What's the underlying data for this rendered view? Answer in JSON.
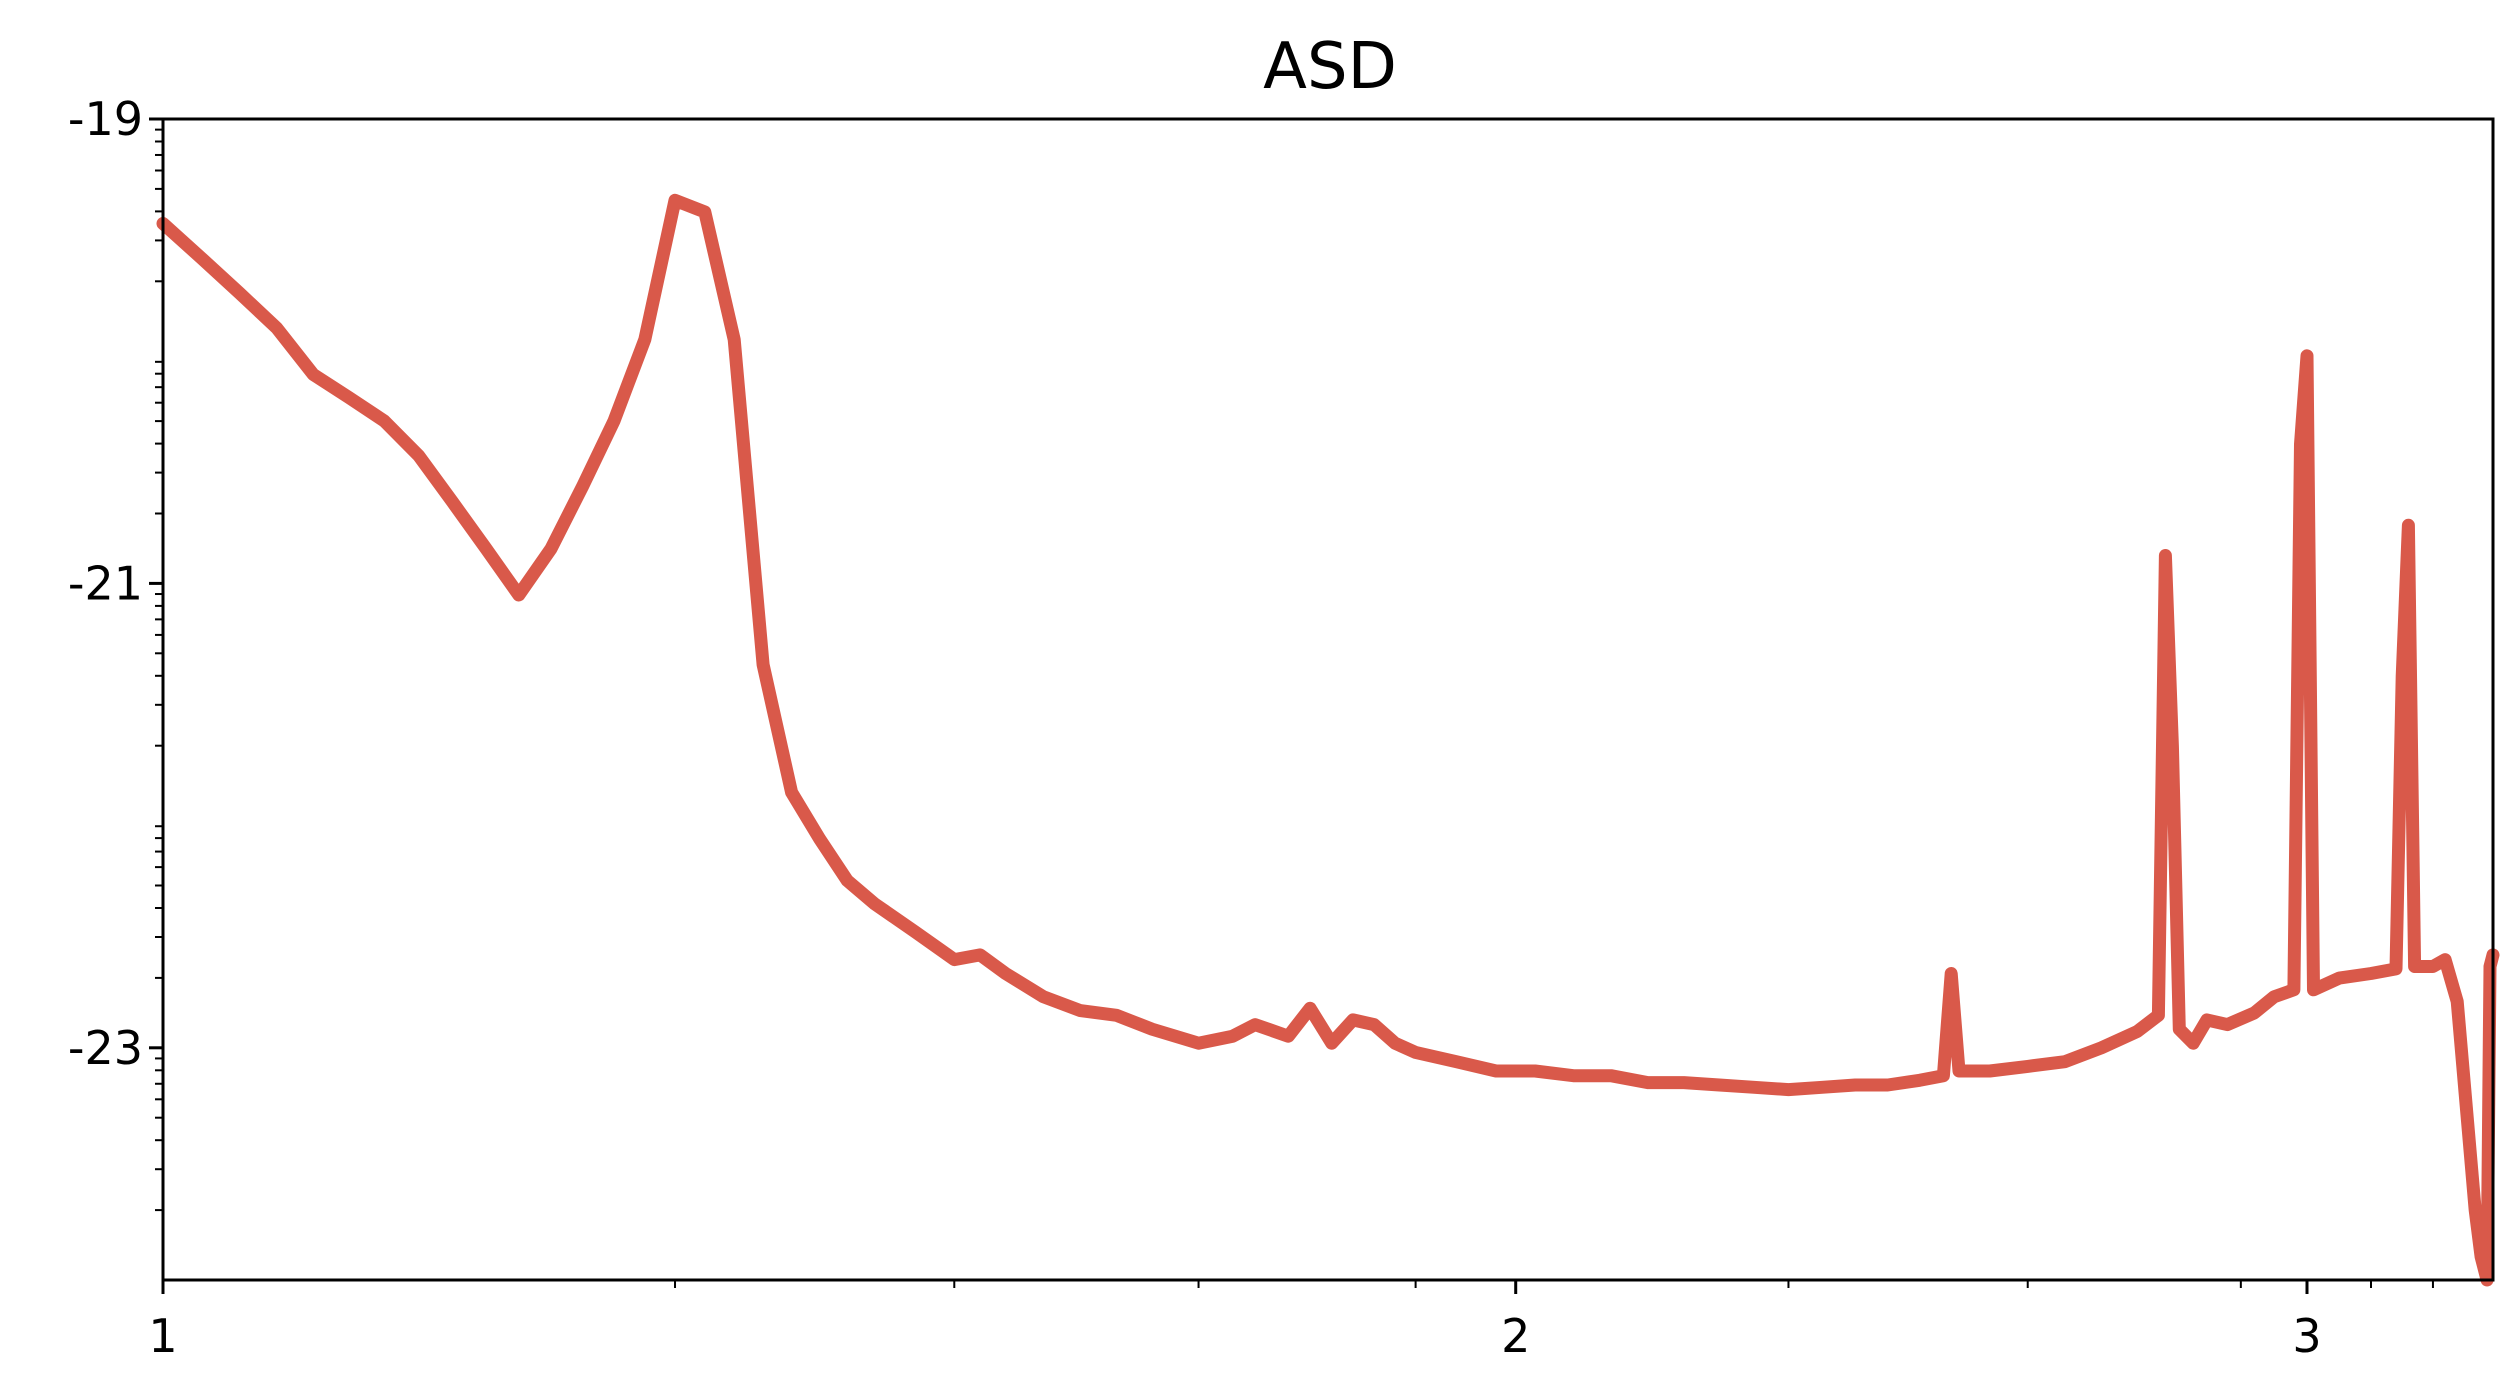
{
  "chart_data": {
    "type": "line",
    "title": "ASD",
    "xlabel": "",
    "ylabel": "",
    "xscale": "log10",
    "yscale": "log10",
    "xlim": [
      1,
      3.3
    ],
    "ylim": [
      -24,
      -19
    ],
    "x_ticks": [
      {
        "value": 1,
        "label": "1"
      },
      {
        "value": 2,
        "label": "2"
      },
      {
        "value": 3,
        "label": "3"
      }
    ],
    "y_ticks": [
      {
        "value": -19,
        "label": "-19"
      },
      {
        "value": -21,
        "label": "-21"
      },
      {
        "value": -23,
        "label": "-23"
      }
    ],
    "grid": false,
    "line_color": "#d9594a",
    "series": [
      {
        "name": "ASD",
        "points": [
          [
            1.0,
            -19.45
          ],
          [
            1.02,
            -19.6
          ],
          [
            1.04,
            -19.75
          ],
          [
            1.06,
            -19.9
          ],
          [
            1.08,
            -20.1
          ],
          [
            1.1,
            -20.2
          ],
          [
            1.12,
            -20.3
          ],
          [
            1.14,
            -20.45
          ],
          [
            1.16,
            -20.65
          ],
          [
            1.18,
            -20.85
          ],
          [
            1.2,
            -21.05
          ],
          [
            1.22,
            -20.85
          ],
          [
            1.24,
            -20.58
          ],
          [
            1.26,
            -20.3
          ],
          [
            1.28,
            -19.95
          ],
          [
            1.3,
            -19.35
          ],
          [
            1.32,
            -19.4
          ],
          [
            1.34,
            -19.95
          ],
          [
            1.36,
            -21.35
          ],
          [
            1.38,
            -21.9
          ],
          [
            1.4,
            -22.1
          ],
          [
            1.42,
            -22.28
          ],
          [
            1.44,
            -22.38
          ],
          [
            1.47,
            -22.5
          ],
          [
            1.5,
            -22.62
          ],
          [
            1.52,
            -22.6
          ],
          [
            1.54,
            -22.68
          ],
          [
            1.57,
            -22.78
          ],
          [
            1.6,
            -22.84
          ],
          [
            1.63,
            -22.86
          ],
          [
            1.66,
            -22.92
          ],
          [
            1.7,
            -22.98
          ],
          [
            1.73,
            -22.95
          ],
          [
            1.75,
            -22.9
          ],
          [
            1.78,
            -22.95
          ],
          [
            1.8,
            -22.83
          ],
          [
            1.82,
            -22.98
          ],
          [
            1.84,
            -22.88
          ],
          [
            1.86,
            -22.9
          ],
          [
            1.88,
            -22.98
          ],
          [
            1.9,
            -23.02
          ],
          [
            1.94,
            -23.06
          ],
          [
            1.98,
            -23.1
          ],
          [
            2.02,
            -23.1
          ],
          [
            2.06,
            -23.12
          ],
          [
            2.1,
            -23.12
          ],
          [
            2.14,
            -23.15
          ],
          [
            2.18,
            -23.15
          ],
          [
            2.22,
            -23.16
          ],
          [
            2.26,
            -23.17
          ],
          [
            2.3,
            -23.18
          ],
          [
            2.34,
            -23.17
          ],
          [
            2.38,
            -23.16
          ],
          [
            2.42,
            -23.16
          ],
          [
            2.46,
            -23.14
          ],
          [
            2.49,
            -23.12
          ],
          [
            2.5,
            -22.68
          ],
          [
            2.51,
            -23.1
          ],
          [
            2.55,
            -23.1
          ],
          [
            2.6,
            -23.08
          ],
          [
            2.65,
            -23.06
          ],
          [
            2.7,
            -23.0
          ],
          [
            2.75,
            -22.93
          ],
          [
            2.78,
            -22.86
          ],
          [
            2.79,
            -20.88
          ],
          [
            2.8,
            -21.7
          ],
          [
            2.81,
            -22.92
          ],
          [
            2.83,
            -22.98
          ],
          [
            2.85,
            -22.88
          ],
          [
            2.88,
            -22.9
          ],
          [
            2.92,
            -22.85
          ],
          [
            2.95,
            -22.78
          ],
          [
            2.98,
            -22.75
          ],
          [
            2.99,
            -20.4
          ],
          [
            3.0,
            -20.02
          ],
          [
            3.01,
            -22.75
          ],
          [
            3.05,
            -22.7
          ],
          [
            3.1,
            -22.68
          ],
          [
            3.14,
            -22.66
          ],
          [
            3.15,
            -21.4
          ],
          [
            3.16,
            -20.75
          ],
          [
            3.17,
            -22.65
          ],
          [
            3.2,
            -22.65
          ],
          [
            3.22,
            -22.62
          ],
          [
            3.24,
            -22.8
          ],
          [
            3.25,
            -23.1
          ],
          [
            3.26,
            -23.4
          ],
          [
            3.27,
            -23.7
          ],
          [
            3.28,
            -23.9
          ],
          [
            3.29,
            -24.05
          ],
          [
            3.295,
            -22.65
          ],
          [
            3.3,
            -22.6
          ]
        ]
      }
    ]
  }
}
